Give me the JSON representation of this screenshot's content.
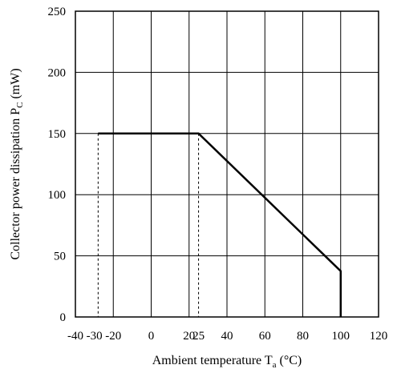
{
  "chart_data": {
    "type": "line",
    "title": "",
    "xlabel": {
      "main": "Ambient temperature T",
      "subscript": "a",
      "unit": " (°C)"
    },
    "ylabel": {
      "main": "Collector power dissipation P",
      "subscript": "C",
      "unit": " (mW)"
    },
    "xlim": [
      -40,
      120
    ],
    "ylim": [
      0,
      250
    ],
    "x_ticks": [
      -40,
      -30,
      -20,
      0,
      20,
      25,
      40,
      60,
      80,
      100,
      120
    ],
    "x_tick_labels": [
      "-40",
      "-30",
      "-20",
      "0",
      "20",
      "25",
      "40",
      "60",
      "80",
      "100",
      "120"
    ],
    "y_ticks": [
      0,
      50,
      100,
      150,
      200,
      250
    ],
    "y_tick_labels": [
      "0",
      "50",
      "100",
      "150",
      "200",
      "250"
    ],
    "x_grid": [
      -40,
      -20,
      0,
      20,
      40,
      60,
      80,
      100,
      120
    ],
    "y_grid": [
      0,
      50,
      100,
      150,
      200,
      250
    ],
    "grid": true,
    "series": [
      {
        "points": [
          [
            -28,
            150
          ],
          [
            25,
            150
          ],
          [
            100,
            37.5
          ],
          [
            100,
            0
          ]
        ],
        "style": "solid"
      }
    ],
    "guides": [
      {
        "x": -28,
        "y": 150,
        "style": "dashed"
      },
      {
        "x": 25,
        "y": 150,
        "style": "dashed"
      }
    ],
    "colors": {
      "line": "#000000",
      "grid": "#000000",
      "background": "#ffffff"
    }
  }
}
